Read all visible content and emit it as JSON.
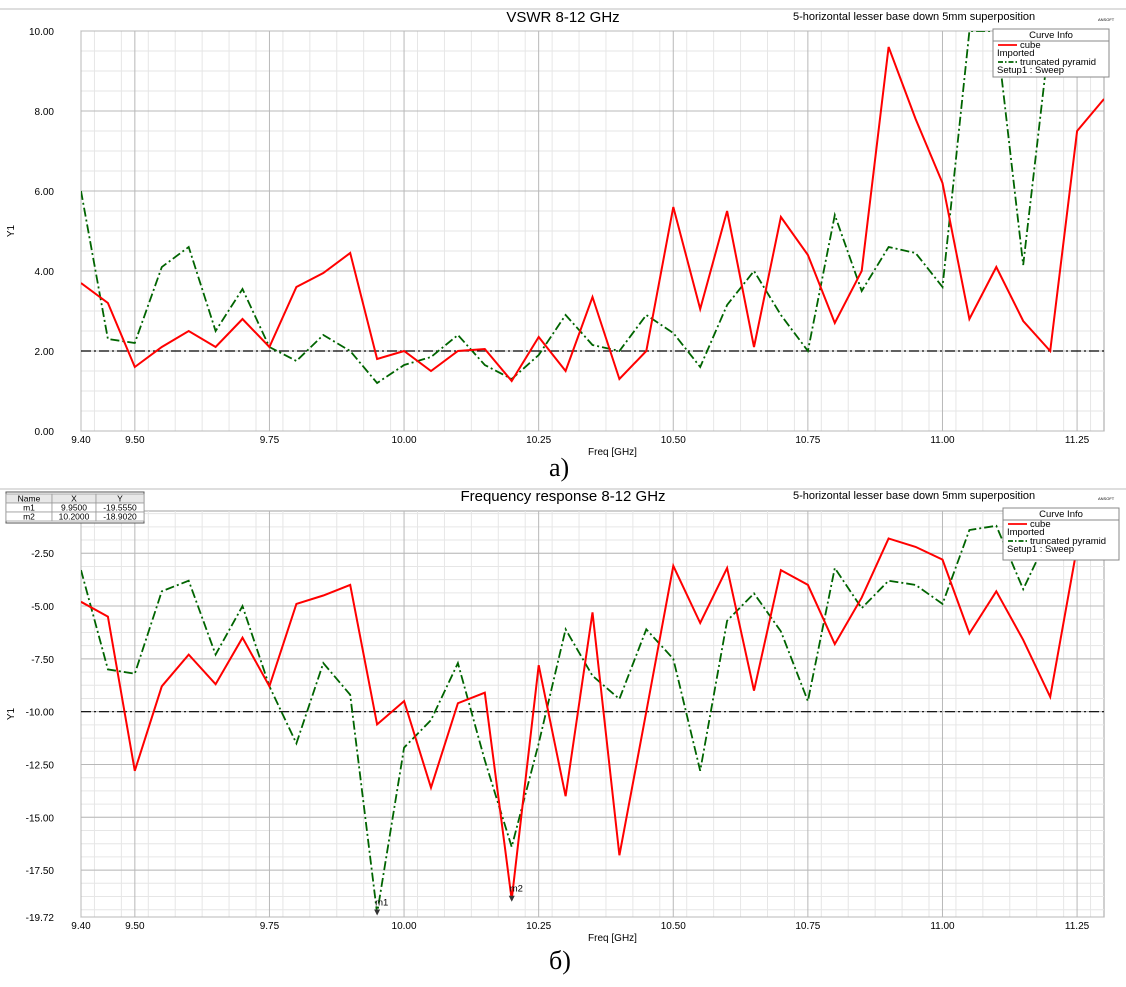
{
  "chart_data": [
    {
      "type": "line",
      "title": "VSWR 8-12 GHz",
      "subtitle": "5-horizontal lesser base down 5mm superposition",
      "brand": "ANSOFT",
      "xlabel": "Freq [GHz]",
      "ylabel": "Y1",
      "xlim": [
        9.4,
        11.3
      ],
      "ylim": [
        0,
        10
      ],
      "xticks": [
        "9.40",
        "9.50",
        "9.75",
        "10.00",
        "10.25",
        "10.50",
        "10.75",
        "11.00",
        "11.25"
      ],
      "xtick_values": [
        9.4,
        9.5,
        9.75,
        10.0,
        10.25,
        10.5,
        10.75,
        11.0,
        11.25
      ],
      "yticks": [
        "0.00",
        "2.00",
        "4.00",
        "6.00",
        "8.00",
        "10.00"
      ],
      "ytick_values": [
        0,
        2,
        4,
        6,
        8,
        10
      ],
      "grid": true,
      "legend": {
        "position": "top-right",
        "header": "Curve Info",
        "entries": [
          {
            "name": "cube",
            "source": "Imported",
            "color": "#ff0000",
            "style": "solid"
          },
          {
            "name": "truncated pyramid",
            "source": "Setup1 : Sweep",
            "color": "#006400",
            "style": "dash-dot"
          }
        ]
      },
      "reference_line": {
        "y": 2.0,
        "color": "#000000",
        "style": "dash-dot"
      },
      "series": [
        {
          "name": "cube",
          "color": "#ff0000",
          "x": [
            9.4,
            9.45,
            9.5,
            9.55,
            9.6,
            9.65,
            9.7,
            9.75,
            9.8,
            9.85,
            9.9,
            9.95,
            10.0,
            10.05,
            10.1,
            10.15,
            10.2,
            10.25,
            10.3,
            10.35,
            10.4,
            10.45,
            10.5,
            10.55,
            10.6,
            10.65,
            10.7,
            10.75,
            10.8,
            10.85,
            10.9,
            10.95,
            11.0,
            11.05,
            11.1,
            11.15,
            11.2,
            11.25,
            11.3
          ],
          "values": [
            3.7,
            3.2,
            1.6,
            2.1,
            2.5,
            2.1,
            2.8,
            2.1,
            3.6,
            3.95,
            4.45,
            1.8,
            2.0,
            1.5,
            2.0,
            2.05,
            1.25,
            2.35,
            1.5,
            3.35,
            1.3,
            2.0,
            5.6,
            3.05,
            5.5,
            2.1,
            5.35,
            4.4,
            2.7,
            4.0,
            9.6,
            7.8,
            6.2,
            2.8,
            4.1,
            2.75,
            2.0,
            7.5,
            8.3
          ]
        },
        {
          "name": "truncated pyramid",
          "color": "#006400",
          "x": [
            9.4,
            9.45,
            9.5,
            9.55,
            9.6,
            9.65,
            9.7,
            9.75,
            9.8,
            9.85,
            9.9,
            9.95,
            10.0,
            10.05,
            10.1,
            10.15,
            10.2,
            10.25,
            10.3,
            10.35,
            10.4,
            10.45,
            10.5,
            10.55,
            10.6,
            10.65,
            10.7,
            10.75,
            10.8,
            10.85,
            10.9,
            10.95,
            11.0,
            11.05,
            11.1,
            11.15,
            11.2
          ],
          "values": [
            6.0,
            2.3,
            2.2,
            4.1,
            4.6,
            2.5,
            3.55,
            2.1,
            1.75,
            2.4,
            2.0,
            1.2,
            1.65,
            1.85,
            2.4,
            1.65,
            1.3,
            1.9,
            2.9,
            2.15,
            2.0,
            2.9,
            2.45,
            1.6,
            3.15,
            4.0,
            2.9,
            2.0,
            5.4,
            3.5,
            4.6,
            4.45,
            3.6,
            10.0,
            10.0,
            4.15,
            10.0
          ]
        }
      ]
    },
    {
      "type": "line",
      "title": "Frequency response 8-12 GHz",
      "subtitle": "5-horizontal lesser base down 5mm superposition",
      "brand": "ANSOFT",
      "xlabel": "Freq [GHz]",
      "ylabel": "Y1",
      "xlim": [
        9.4,
        11.3
      ],
      "ylim": [
        -19.72,
        -0.5
      ],
      "xticks": [
        "9.40",
        "9.50",
        "9.75",
        "10.00",
        "10.25",
        "10.50",
        "10.75",
        "11.00",
        "11.25"
      ],
      "xtick_values": [
        9.4,
        9.5,
        9.75,
        10.0,
        10.25,
        10.5,
        10.75,
        11.0,
        11.25
      ],
      "yticks": [
        "-2.50",
        "-5.00",
        "-7.50",
        "-10.00",
        "-12.50",
        "-15.00",
        "-17.50",
        "-19.72"
      ],
      "ytick_values": [
        -2.5,
        -5,
        -7.5,
        -10,
        -12.5,
        -15,
        -17.5,
        -19.72
      ],
      "grid": true,
      "legend": {
        "position": "top-right",
        "header": "Curve Info",
        "entries": [
          {
            "name": "cube",
            "source": "Imported",
            "color": "#ff0000",
            "style": "solid"
          },
          {
            "name": "truncated pyramid",
            "source": "Setup1 : Sweep",
            "color": "#006400",
            "style": "dash-dot"
          }
        ]
      },
      "reference_line": {
        "y": -10.0,
        "color": "#000000",
        "style": "dash-dot"
      },
      "marker_table": {
        "headers": [
          "Name",
          "X",
          "Y"
        ],
        "rows": [
          [
            "m1",
            "9.9500",
            "-19.5550"
          ],
          [
            "m2",
            "10.2000",
            "-18.9020"
          ]
        ]
      },
      "markers": [
        {
          "name": "m1",
          "x": 9.95,
          "y": -19.555
        },
        {
          "name": "m2",
          "x": 10.2,
          "y": -18.902
        }
      ],
      "series": [
        {
          "name": "cube",
          "color": "#ff0000",
          "x": [
            9.4,
            9.45,
            9.5,
            9.55,
            9.6,
            9.65,
            9.7,
            9.75,
            9.8,
            9.85,
            9.9,
            9.95,
            10.0,
            10.05,
            10.1,
            10.15,
            10.2,
            10.25,
            10.3,
            10.35,
            10.4,
            10.45,
            10.5,
            10.55,
            10.6,
            10.65,
            10.7,
            10.75,
            10.8,
            10.85,
            10.9,
            10.95,
            11.0,
            11.05,
            11.1,
            11.15,
            11.2,
            11.25
          ],
          "values": [
            -4.8,
            -5.5,
            -12.8,
            -8.8,
            -7.3,
            -8.7,
            -6.5,
            -8.8,
            -4.9,
            -4.5,
            -4.0,
            -10.6,
            -9.5,
            -13.6,
            -9.6,
            -9.1,
            -18.9,
            -7.8,
            -14.0,
            -5.3,
            -16.8,
            -10.0,
            -3.1,
            -5.8,
            -3.2,
            -9.0,
            -3.3,
            -4.0,
            -6.8,
            -4.6,
            -1.8,
            -2.2,
            -2.8,
            -6.3,
            -4.3,
            -6.6,
            -9.3,
            -2.2
          ]
        },
        {
          "name": "truncated pyramid",
          "color": "#006400",
          "x": [
            9.4,
            9.45,
            9.5,
            9.55,
            9.6,
            9.65,
            9.7,
            9.75,
            9.8,
            9.85,
            9.9,
            9.95,
            10.0,
            10.05,
            10.1,
            10.15,
            10.2,
            10.25,
            10.3,
            10.35,
            10.4,
            10.45,
            10.5,
            10.55,
            10.6,
            10.65,
            10.7,
            10.75,
            10.8,
            10.85,
            10.9,
            10.95,
            11.0,
            11.05,
            11.1,
            11.15,
            11.2
          ],
          "values": [
            -3.3,
            -8.0,
            -8.2,
            -4.3,
            -3.8,
            -7.3,
            -5.0,
            -8.8,
            -11.5,
            -7.7,
            -9.2,
            -19.55,
            -11.7,
            -10.4,
            -7.7,
            -12.3,
            -16.4,
            -11.5,
            -6.1,
            -8.3,
            -9.4,
            -6.1,
            -7.5,
            -12.8,
            -5.7,
            -4.4,
            -6.2,
            -9.5,
            -3.2,
            -5.1,
            -3.8,
            -4.0,
            -4.9,
            -1.4,
            -1.2,
            -4.2,
            -1.5
          ]
        }
      ]
    }
  ],
  "captions": [
    "а)",
    "б)"
  ]
}
